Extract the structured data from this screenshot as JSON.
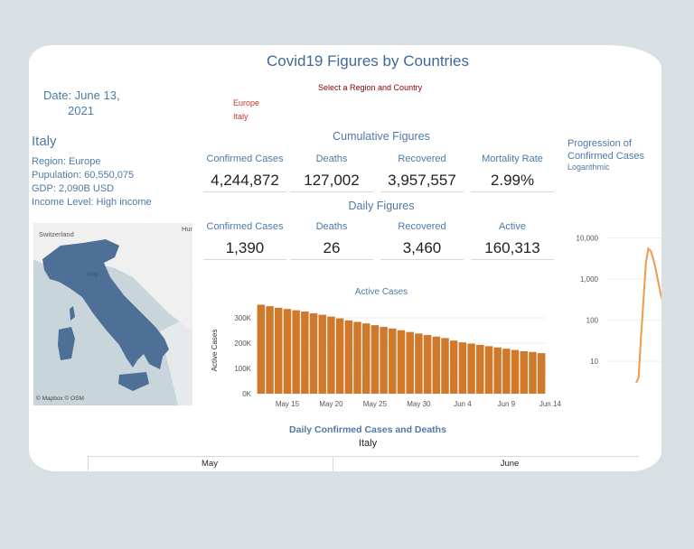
{
  "dashboard": {
    "title": "Covid19 Figures by Countries",
    "date_line1": "Date: June 13,",
    "date_line2": "2021"
  },
  "filter": {
    "title": "Select a Region and Country",
    "region": "Europe",
    "country": "Italy"
  },
  "country_info": {
    "name": "Italy",
    "region": "Region: Europe",
    "population": "Pupulation: 60,550,075",
    "gdp": "GDP: 2,090B USD",
    "income": "Income Level: High income"
  },
  "map": {
    "labels": [
      "Switzerland",
      "Italy",
      "Hun"
    ],
    "attribution": "© Mapbox © OSM",
    "colors": {
      "country": "#4e6f96",
      "land": "#f0f0f0",
      "water": "#c8d5da"
    }
  },
  "cumulative": {
    "title": "Cumulative Figures",
    "labels": [
      "Confirmed Cases",
      "Deaths",
      "Recovered",
      "Mortality Rate"
    ],
    "values": [
      "4,244,872",
      "127,002",
      "3,957,557",
      "2.99%"
    ]
  },
  "daily": {
    "title": "Daily Figures",
    "labels": [
      "Confirmed Cases",
      "Deaths",
      "Recovered",
      "Active"
    ],
    "values": [
      "1,390",
      "26",
      "3,460",
      "160,313"
    ]
  },
  "chart_data": [
    {
      "type": "bar",
      "title": "Active Cases",
      "ylabel": "Active Cases",
      "color": "#d0792a",
      "ylim": [
        0,
        350000
      ],
      "yticks": [
        {
          "v": 0,
          "label": "0K"
        },
        {
          "v": 100000,
          "label": "100K"
        },
        {
          "v": 200000,
          "label": "200K"
        },
        {
          "v": 300000,
          "label": "300K"
        }
      ],
      "xticks": [
        {
          "i": 3,
          "label": "May 15"
        },
        {
          "i": 8,
          "label": "May 20"
        },
        {
          "i": 13,
          "label": "May 25"
        },
        {
          "i": 18,
          "label": "May 30"
        },
        {
          "i": 23,
          "label": "Jun 4"
        },
        {
          "i": 28,
          "label": "Jun 9"
        },
        {
          "i": 33,
          "label": "Jun 14"
        }
      ],
      "categories": [
        "May 12",
        "May 13",
        "May 14",
        "May 15",
        "May 16",
        "May 17",
        "May 18",
        "May 19",
        "May 20",
        "May 21",
        "May 22",
        "May 23",
        "May 24",
        "May 25",
        "May 26",
        "May 27",
        "May 28",
        "May 29",
        "May 30",
        "May 31",
        "Jun 1",
        "Jun 2",
        "Jun 3",
        "Jun 4",
        "Jun 5",
        "Jun 6",
        "Jun 7",
        "Jun 8",
        "Jun 9",
        "Jun 10",
        "Jun 11",
        "Jun 12",
        "Jun 13"
      ],
      "values": [
        352000,
        346000,
        340000,
        335000,
        330000,
        325000,
        318000,
        312000,
        305000,
        298000,
        290000,
        284000,
        278000,
        271000,
        264000,
        258000,
        251000,
        244000,
        238000,
        232000,
        226000,
        220000,
        210000,
        203000,
        198000,
        193000,
        188000,
        183000,
        178000,
        173000,
        168000,
        165000,
        160313
      ]
    },
    {
      "type": "line",
      "title": "Progression of Confirmed Cases",
      "subtitle": "Logarithmic",
      "yscale": "log",
      "color": "#f2994a",
      "yticks": [
        {
          "v": 10,
          "label": "10"
        },
        {
          "v": 100,
          "label": "100"
        },
        {
          "v": 1000,
          "label": "1,000"
        },
        {
          "v": 10000,
          "label": "10,000"
        }
      ],
      "series": [
        {
          "values": [
            3,
            4,
            40,
            300,
            2500,
            5500,
            4800,
            3200,
            1800,
            900,
            450,
            280,
            200,
            190,
            250,
            600,
            1400,
            2000,
            2400,
            4000,
            9000,
            18000,
            28000,
            32000,
            25000,
            15000,
            13000
          ]
        }
      ]
    },
    {
      "type": "bar",
      "title": "Daily Confirmed Cases and Deaths",
      "subtitle": "Italy",
      "categories": [
        "May",
        "June"
      ]
    }
  ]
}
